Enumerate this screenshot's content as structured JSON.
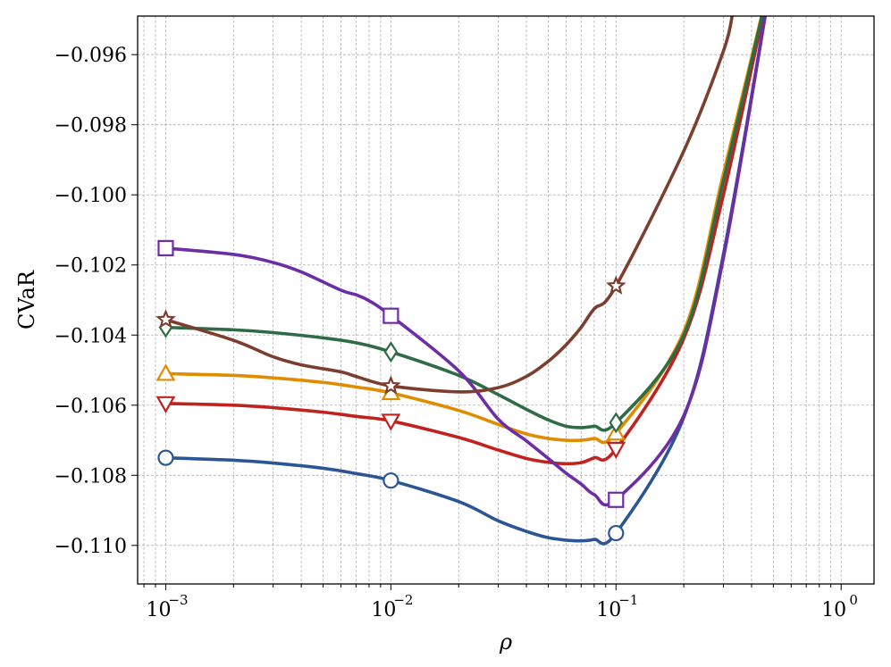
{
  "chart_data": {
    "type": "line",
    "xlabel": "ρ",
    "ylabel": "CVaR",
    "xscale": "log",
    "xlim": [
      0.00075,
      1.4
    ],
    "ylim": [
      -0.1111,
      -0.0949
    ],
    "grid": true,
    "grid_minor": true,
    "legend": "none",
    "xticks": [
      {
        "base": "10",
        "exp": "−3"
      },
      {
        "base": "10",
        "exp": "−2"
      },
      {
        "base": "10",
        "exp": "−1"
      },
      {
        "base": "10",
        "exp": "0"
      }
    ],
    "xtick_values": [
      0.001,
      0.01,
      0.1,
      1
    ],
    "yticks": [
      "−0.096",
      "−0.098",
      "−0.100",
      "−0.102",
      "−0.104",
      "−0.106",
      "−0.108",
      "−0.110"
    ],
    "ytick_values": [
      -0.096,
      -0.098,
      -0.1,
      -0.102,
      -0.104,
      -0.106,
      -0.108,
      -0.11
    ],
    "series": [
      {
        "color": "#2b5593",
        "marker": "circle",
        "x": [
          0.001,
          0.002,
          0.003,
          0.005,
          0.007,
          0.01,
          0.02,
          0.03,
          0.04,
          0.05,
          0.06,
          0.07,
          0.08,
          0.1,
          0.2,
          0.3,
          0.5
        ],
        "y": [
          -0.1075,
          -0.10757,
          -0.10765,
          -0.1078,
          -0.10795,
          -0.10815,
          -0.10875,
          -0.1093,
          -0.1096,
          -0.10978,
          -0.10985,
          -0.10987,
          -0.10983,
          -0.10965,
          -0.10635,
          -0.1017,
          -0.0935
        ],
        "marker_x": [
          0.001,
          0.01,
          0.1
        ],
        "marker_y": [
          -0.1075,
          -0.10815,
          -0.10965
        ]
      },
      {
        "color": "#c0221f",
        "marker": "triangle-down",
        "x": [
          0.001,
          0.002,
          0.003,
          0.005,
          0.007,
          0.01,
          0.02,
          0.03,
          0.04,
          0.05,
          0.06,
          0.07,
          0.08,
          0.1,
          0.2,
          0.3,
          0.5
        ],
        "y": [
          -0.10595,
          -0.106,
          -0.10607,
          -0.1062,
          -0.10632,
          -0.10645,
          -0.10692,
          -0.10728,
          -0.10752,
          -0.10763,
          -0.10767,
          -0.10764,
          -0.1075,
          -0.10725,
          -0.1041,
          -0.1,
          -0.0935
        ],
        "marker_x": [
          0.001,
          0.01,
          0.1
        ],
        "marker_y": [
          -0.10595,
          -0.10645,
          -0.10725
        ]
      },
      {
        "color": "#e08c00",
        "marker": "triangle-up",
        "x": [
          0.001,
          0.002,
          0.003,
          0.005,
          0.007,
          0.01,
          0.02,
          0.03,
          0.04,
          0.05,
          0.06,
          0.07,
          0.08,
          0.1,
          0.2,
          0.3,
          0.5
        ],
        "y": [
          -0.1051,
          -0.10515,
          -0.10522,
          -0.10535,
          -0.10548,
          -0.10565,
          -0.10615,
          -0.10655,
          -0.10682,
          -0.10695,
          -0.107,
          -0.107,
          -0.10695,
          -0.1068,
          -0.1039,
          -0.0994,
          -0.0935
        ],
        "marker_x": [
          0.001,
          0.01,
          0.1
        ],
        "marker_y": [
          -0.1051,
          -0.10565,
          -0.1068
        ]
      },
      {
        "color": "#2f6b45",
        "marker": "diamond",
        "x": [
          0.001,
          0.002,
          0.003,
          0.005,
          0.007,
          0.01,
          0.02,
          0.03,
          0.04,
          0.05,
          0.06,
          0.07,
          0.08,
          0.1,
          0.2,
          0.3,
          0.5
        ],
        "y": [
          -0.10378,
          -0.10385,
          -0.10393,
          -0.10408,
          -0.10422,
          -0.10448,
          -0.10515,
          -0.1057,
          -0.10612,
          -0.10642,
          -0.1066,
          -0.10664,
          -0.1066,
          -0.1065,
          -0.104,
          -0.0996,
          -0.0935
        ],
        "marker_x": [
          0.001,
          0.01,
          0.1
        ],
        "marker_y": [
          -0.10378,
          -0.10448,
          -0.1065
        ]
      },
      {
        "color": "#6c2ea5",
        "marker": "square",
        "x": [
          0.001,
          0.002,
          0.003,
          0.004,
          0.006,
          0.007,
          0.008,
          0.01,
          0.02,
          0.03,
          0.04,
          0.05,
          0.06,
          0.07,
          0.08,
          0.1,
          0.2,
          0.3,
          0.5
        ],
        "y": [
          -0.10152,
          -0.1017,
          -0.10193,
          -0.1022,
          -0.10272,
          -0.10285,
          -0.10302,
          -0.10345,
          -0.10502,
          -0.1064,
          -0.10702,
          -0.10752,
          -0.10794,
          -0.10825,
          -0.10855,
          -0.1087,
          -0.1063,
          -0.1018,
          -0.0935
        ],
        "marker_x": [
          0.001,
          0.01,
          0.1
        ],
        "marker_y": [
          -0.10152,
          -0.10345,
          -0.1087
        ]
      },
      {
        "color": "#7b3f30",
        "marker": "star",
        "x": [
          0.001,
          0.002,
          0.003,
          0.004,
          0.006,
          0.007,
          0.01,
          0.02,
          0.03,
          0.04,
          0.05,
          0.06,
          0.07,
          0.08,
          0.1,
          0.2,
          0.3,
          0.33
        ],
        "y": [
          -0.10356,
          -0.10415,
          -0.10462,
          -0.10485,
          -0.10505,
          -0.10518,
          -0.10545,
          -0.10562,
          -0.1055,
          -0.10518,
          -0.10475,
          -0.10428,
          -0.10378,
          -0.10325,
          -0.1026,
          -0.09875,
          -0.0959,
          -0.0948
        ],
        "marker_x": [
          0.001,
          0.01,
          0.1
        ],
        "marker_y": [
          -0.10356,
          -0.10545,
          -0.1026
        ]
      }
    ]
  }
}
